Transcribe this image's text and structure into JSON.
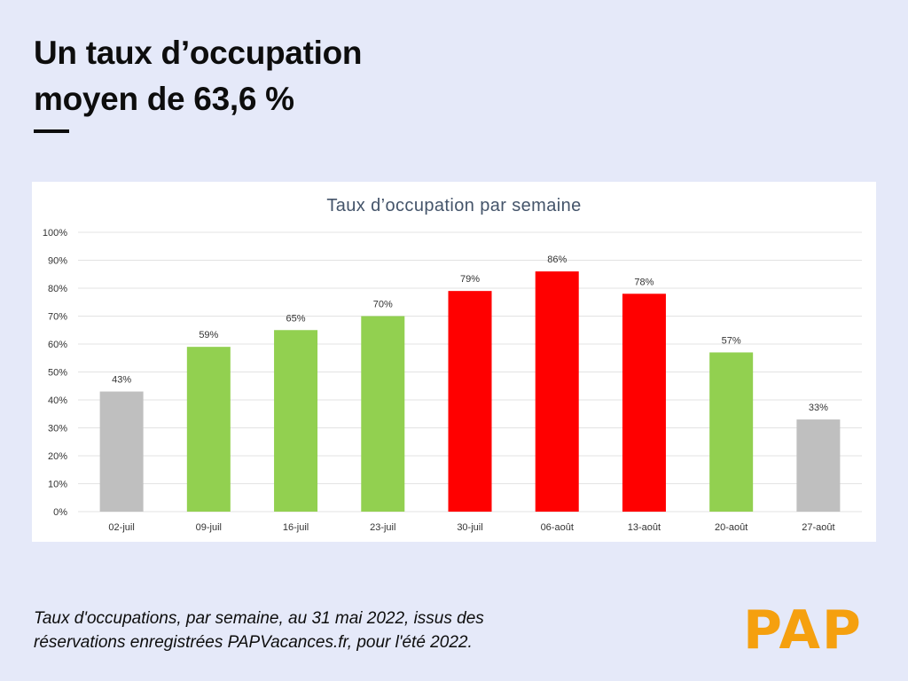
{
  "headline": {
    "line1": "Un taux d’occupation",
    "line2": "moyen de 63,6 %"
  },
  "caption": {
    "line1": "Taux d'occupations, par semaine, au 31 mai 2022, issus des",
    "line2": "réservations enregistrées PAPVacances.fr, pour l'été 2022."
  },
  "logo": {
    "text": "PAP",
    "color": "#f5a00f"
  },
  "colors": {
    "background": "#e5e9f9",
    "grey": "#bfbfbf",
    "green": "#92d050",
    "red": "#ff0000"
  },
  "chart_data": {
    "type": "bar",
    "title": "Taux d’occupation par semaine",
    "xlabel": "",
    "ylabel": "",
    "categories": [
      "02-juil",
      "09-juil",
      "16-juil",
      "23-juil",
      "30-juil",
      "06-août",
      "13-août",
      "20-août",
      "27-août"
    ],
    "values": [
      43,
      59,
      65,
      70,
      79,
      86,
      78,
      57,
      33
    ],
    "value_labels": [
      "43%",
      "59%",
      "65%",
      "70%",
      "79%",
      "86%",
      "78%",
      "57%",
      "33%"
    ],
    "bar_colors": [
      "#bfbfbf",
      "#92d050",
      "#92d050",
      "#92d050",
      "#ff0000",
      "#ff0000",
      "#ff0000",
      "#92d050",
      "#bfbfbf"
    ],
    "ylim": [
      0,
      100
    ],
    "y_ticks": [
      0,
      10,
      20,
      30,
      40,
      50,
      60,
      70,
      80,
      90,
      100
    ],
    "y_tick_labels": [
      "0%",
      "10%",
      "20%",
      "30%",
      "40%",
      "50%",
      "60%",
      "70%",
      "80%",
      "90%",
      "100%"
    ],
    "grid": true,
    "legend": "none"
  }
}
